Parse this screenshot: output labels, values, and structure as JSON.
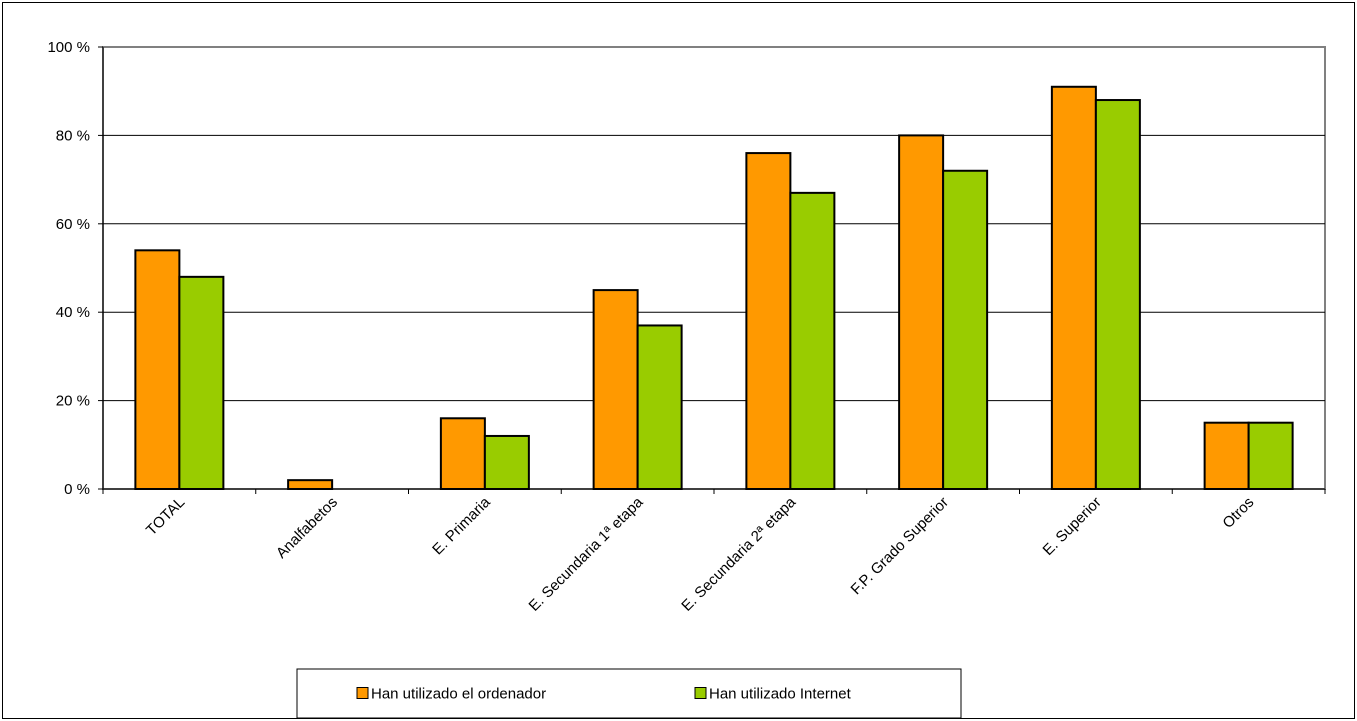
{
  "chart_data": {
    "type": "bar",
    "categories": [
      "TOTAL",
      "Analfabetos",
      "E. Primaria",
      "E. Secundaria 1ª etapa",
      "E. Secundaria 2ª etapa",
      "F.P. Grado Superior",
      "E. Superior",
      "Otros"
    ],
    "series": [
      {
        "name": "Han utilizado el ordenador",
        "color": "#ff9900",
        "values": [
          54,
          2,
          16,
          45,
          76,
          80,
          91,
          15
        ]
      },
      {
        "name": "Han utilizado Internet",
        "color": "#99cc00",
        "values": [
          48,
          0,
          12,
          37,
          67,
          72,
          88,
          15
        ]
      }
    ],
    "y_ticks": [
      0,
      20,
      40,
      60,
      80,
      100
    ],
    "y_tick_suffix": " %",
    "ylim": [
      0,
      100
    ],
    "title": "",
    "xlabel": "",
    "ylabel": "",
    "grid": true,
    "legend_position": "bottom"
  }
}
